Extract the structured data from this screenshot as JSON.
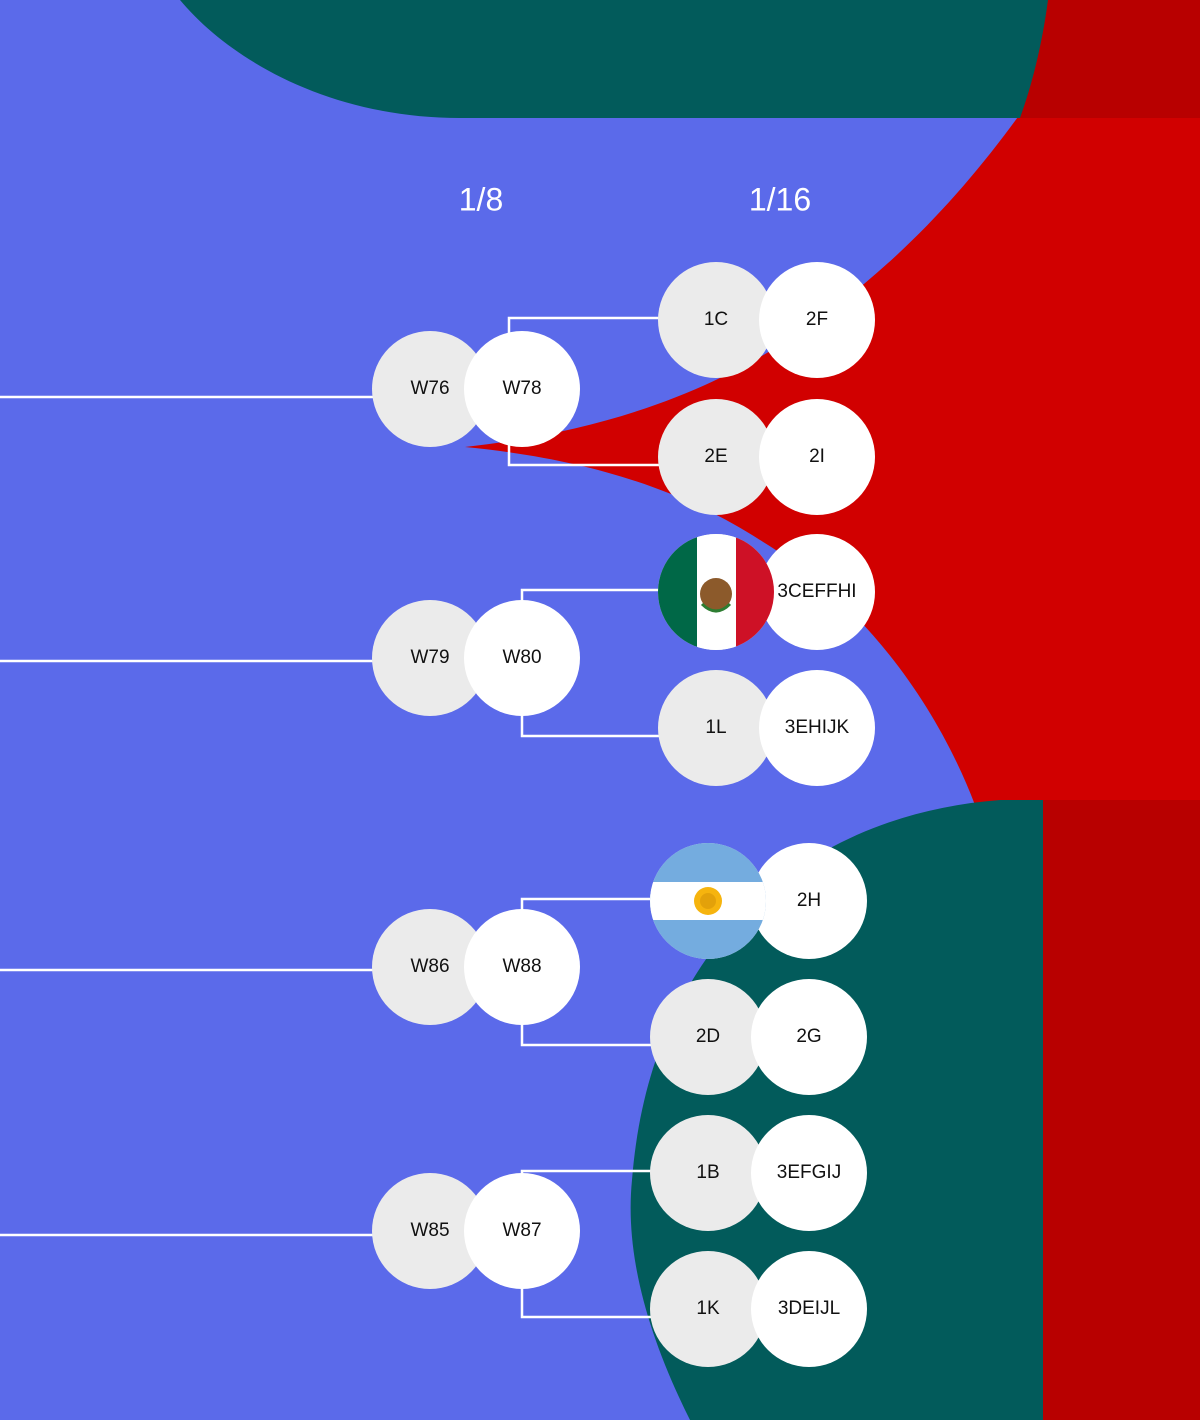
{
  "rounds": [
    "1/8",
    "1/16"
  ],
  "round_of_16": [
    {
      "a": "W76",
      "b": "W78"
    },
    {
      "a": "W79",
      "b": "W80"
    },
    {
      "a": "W86",
      "b": "W88"
    },
    {
      "a": "W85",
      "b": "W87"
    }
  ],
  "round_of_32": [
    {
      "a": "1C",
      "b": "2F"
    },
    {
      "a": "2E",
      "b": "2I"
    },
    {
      "b": "3CEFFHI"
    },
    {
      "a": "1L",
      "b": "3EHIJK"
    },
    {
      "b": "2H"
    },
    {
      "a": "2D",
      "b": "2G"
    },
    {
      "a": "1B",
      "b": "3EFGIJ"
    },
    {
      "a": "1K",
      "b": "3DEIJL"
    }
  ]
}
